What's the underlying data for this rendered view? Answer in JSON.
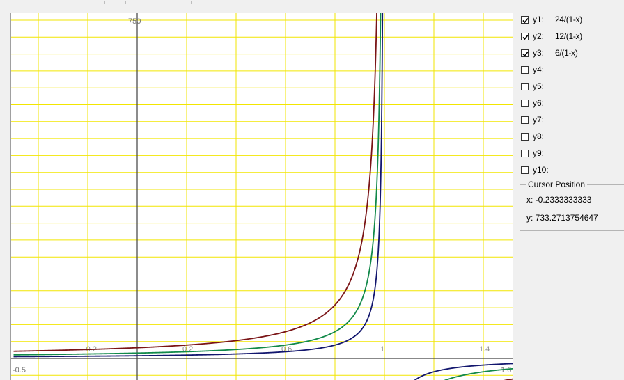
{
  "plot": {
    "y_axis_top_label": "750",
    "x_tick_labels": [
      "-0.2",
      "0.2",
      "0.6",
      "1",
      "1.4"
    ],
    "x_edge_labels": [
      "-0.5",
      "1.6"
    ],
    "curve_colors": {
      "y1": "#7a1416",
      "y2": "#12894a",
      "y3": "#12166e"
    },
    "grid_color": "#f2e600"
  },
  "chart_data": {
    "type": "line",
    "title": "",
    "xlabel": "",
    "ylabel": "",
    "xlim": [
      -0.5,
      1.6
    ],
    "ylim": [
      -50,
      750
    ],
    "grid": true,
    "series": [
      {
        "name": "y1",
        "expression": "24/(1-x)",
        "color": "#7a1416"
      },
      {
        "name": "y2",
        "expression": "12/(1-x)",
        "color": "#12894a"
      },
      {
        "name": "y3",
        "expression": "6/(1-x)",
        "color": "#12166e"
      }
    ]
  },
  "functions": [
    {
      "label": "y1:",
      "expr": "24/(1-x)",
      "checked": true
    },
    {
      "label": "y2:",
      "expr": "12/(1-x)",
      "checked": true
    },
    {
      "label": "y3:",
      "expr": "6/(1-x)",
      "checked": true
    },
    {
      "label": "y4:",
      "expr": "",
      "checked": false
    },
    {
      "label": "y5:",
      "expr": "",
      "checked": false
    },
    {
      "label": "y6:",
      "expr": "",
      "checked": false
    },
    {
      "label": "y7:",
      "expr": "",
      "checked": false
    },
    {
      "label": "y8:",
      "expr": "",
      "checked": false
    },
    {
      "label": "y9:",
      "expr": "",
      "checked": false
    },
    {
      "label": "y10:",
      "expr": "",
      "checked": false
    }
  ],
  "cursor": {
    "legend": "Cursor Position",
    "x": "x: -0.2333333333",
    "y": "y: 733.2713754647"
  }
}
